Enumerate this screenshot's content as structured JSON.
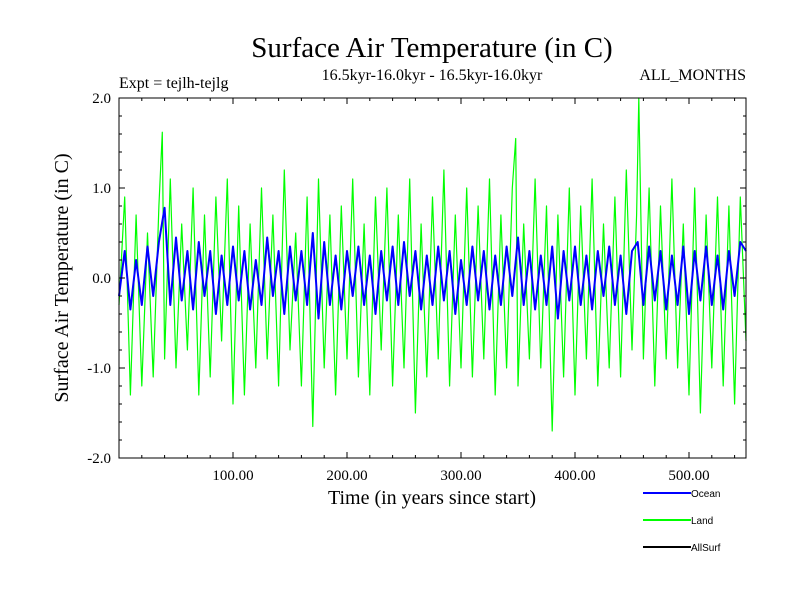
{
  "chart_data": {
    "type": "line",
    "title": "Surface Air Temperature (in C)",
    "subtitle_left": "Expt = tejlh-tejlg",
    "subtitle_center": "16.5kyr-16.0kyr - 16.5kyr-16.0kyr",
    "subtitle_right": "ALL_MONTHS",
    "xlabel": "Time (in years since start)",
    "ylabel": "Surface Air Temperature (in C)",
    "xlim": [
      0,
      550
    ],
    "ylim": [
      -2.0,
      2.0
    ],
    "x_ticks": [
      100,
      200,
      300,
      400,
      500
    ],
    "x_tick_labels": [
      "100.00",
      "200.00",
      "300.00",
      "400.00",
      "500.00"
    ],
    "y_ticks": [
      -2.0,
      -1.0,
      0.0,
      1.0,
      2.0
    ],
    "y_tick_labels": [
      "-2.0",
      "-1.0",
      "0.0",
      "1.0",
      "2.0"
    ],
    "series": [
      {
        "name": "Land",
        "color": "#00ff00",
        "x": [
          0,
          5,
          10,
          15,
          20,
          25,
          30,
          35,
          38,
          40,
          45,
          50,
          55,
          60,
          65,
          70,
          75,
          80,
          85,
          90,
          95,
          100,
          105,
          110,
          115,
          120,
          125,
          130,
          135,
          140,
          145,
          150,
          155,
          160,
          165,
          170,
          175,
          180,
          185,
          190,
          195,
          200,
          205,
          210,
          215,
          220,
          225,
          230,
          235,
          240,
          245,
          250,
          255,
          260,
          265,
          270,
          275,
          280,
          285,
          290,
          295,
          300,
          305,
          310,
          315,
          320,
          325,
          330,
          335,
          340,
          345,
          348,
          350,
          355,
          360,
          365,
          370,
          375,
          380,
          385,
          390,
          395,
          400,
          405,
          410,
          415,
          420,
          425,
          430,
          435,
          440,
          445,
          450,
          454,
          456,
          460,
          465,
          470,
          475,
          480,
          485,
          490,
          495,
          500,
          505,
          510,
          515,
          520,
          525,
          530,
          535,
          540,
          545,
          550
        ],
        "values": [
          -0.3,
          0.9,
          -1.3,
          0.7,
          -1.2,
          0.5,
          -1.1,
          0.8,
          1.62,
          -0.9,
          1.1,
          -1.0,
          0.6,
          -0.8,
          1.0,
          -1.3,
          0.7,
          -1.1,
          0.9,
          -0.7,
          1.1,
          -1.4,
          0.8,
          -1.3,
          0.6,
          -1.0,
          1.0,
          -0.9,
          0.7,
          -1.2,
          1.2,
          -0.8,
          0.5,
          -1.2,
          0.9,
          -1.65,
          1.1,
          -1.0,
          0.7,
          -1.3,
          0.8,
          -0.9,
          1.1,
          -1.1,
          0.6,
          -1.3,
          0.9,
          -0.8,
          1.0,
          -1.2,
          0.7,
          -1.0,
          1.1,
          -1.5,
          0.6,
          -1.1,
          0.9,
          -0.9,
          1.2,
          -1.2,
          0.7,
          -1.0,
          1.0,
          -1.1,
          0.8,
          -0.9,
          1.1,
          -1.3,
          0.7,
          -1.0,
          1.0,
          1.55,
          -1.2,
          0.6,
          -0.9,
          1.1,
          -1.0,
          0.8,
          -1.7,
          0.7,
          -1.1,
          1.0,
          -1.3,
          0.8,
          -0.9,
          1.1,
          -1.2,
          0.6,
          -1.0,
          0.9,
          -1.1,
          1.2,
          -0.8,
          0.7,
          2.0,
          -0.9,
          1.0,
          -1.2,
          0.8,
          -0.9,
          1.1,
          -1.0,
          0.6,
          -1.3,
          1.0,
          -1.5,
          0.7,
          -1.0,
          0.9,
          -1.2,
          0.8,
          -1.4,
          0.9,
          -0.7
        ]
      },
      {
        "name": "Ocean",
        "color": "#0000ff",
        "x": [
          0,
          5,
          10,
          15,
          20,
          25,
          30,
          35,
          40,
          45,
          50,
          55,
          60,
          65,
          70,
          75,
          80,
          85,
          90,
          95,
          100,
          105,
          110,
          115,
          120,
          125,
          130,
          135,
          140,
          145,
          150,
          155,
          160,
          165,
          170,
          175,
          180,
          185,
          190,
          195,
          200,
          205,
          210,
          215,
          220,
          225,
          230,
          235,
          240,
          245,
          250,
          255,
          260,
          265,
          270,
          275,
          280,
          285,
          290,
          295,
          300,
          305,
          310,
          315,
          320,
          325,
          330,
          335,
          340,
          345,
          350,
          355,
          360,
          365,
          370,
          375,
          380,
          385,
          390,
          395,
          400,
          405,
          410,
          415,
          420,
          425,
          430,
          435,
          440,
          445,
          450,
          455,
          460,
          465,
          470,
          475,
          480,
          485,
          490,
          495,
          500,
          505,
          510,
          515,
          520,
          525,
          530,
          535,
          540,
          545,
          550
        ],
        "values": [
          -0.2,
          0.3,
          -0.35,
          0.2,
          -0.3,
          0.35,
          -0.2,
          0.4,
          0.78,
          -0.3,
          0.45,
          -0.25,
          0.3,
          -0.35,
          0.4,
          -0.2,
          0.3,
          -0.4,
          0.25,
          -0.3,
          0.35,
          -0.25,
          0.3,
          -0.35,
          0.2,
          -0.3,
          0.45,
          -0.2,
          0.3,
          -0.4,
          0.35,
          -0.25,
          0.3,
          -0.3,
          0.5,
          -0.45,
          0.4,
          -0.3,
          0.25,
          -0.35,
          0.3,
          -0.2,
          0.35,
          -0.3,
          0.25,
          -0.4,
          0.3,
          -0.25,
          0.35,
          -0.3,
          0.4,
          -0.2,
          0.3,
          -0.35,
          0.25,
          -0.3,
          0.35,
          -0.25,
          0.3,
          -0.4,
          0.2,
          -0.3,
          0.35,
          -0.25,
          0.3,
          -0.35,
          0.25,
          -0.3,
          0.35,
          -0.2,
          0.45,
          -0.3,
          0.3,
          -0.35,
          0.25,
          -0.3,
          0.35,
          -0.45,
          0.3,
          -0.25,
          0.35,
          -0.3,
          0.25,
          -0.35,
          0.3,
          -0.2,
          0.35,
          -0.3,
          0.25,
          -0.4,
          0.3,
          0.4,
          -0.3,
          0.35,
          -0.25,
          0.3,
          -0.35,
          0.25,
          -0.3,
          0.35,
          -0.4,
          0.3,
          -0.25,
          0.35,
          -0.3,
          0.25,
          -0.35,
          0.3,
          -0.2,
          0.4,
          0.3
        ]
      }
    ],
    "legend": [
      "Ocean",
      "Land",
      "AllSurf"
    ],
    "legend_colors": [
      "#0000ff",
      "#00ff00",
      "#000000"
    ],
    "legend_position": "bottom-right"
  }
}
